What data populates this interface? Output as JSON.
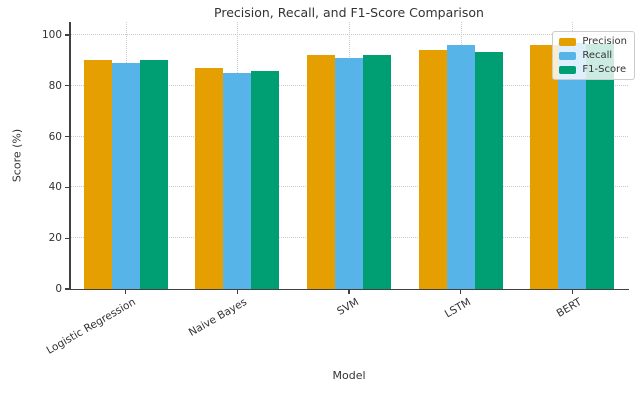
{
  "title": "Precision, Recall, and F1-Score Comparison",
  "chart_data": {
    "type": "bar",
    "title": "Precision, Recall, and F1-Score Comparison",
    "xlabel": "Model",
    "ylabel": "Score (%)",
    "ylim": [
      0,
      100
    ],
    "yticks": [
      0,
      20,
      40,
      60,
      80,
      100
    ],
    "grid": "both-dotted",
    "legend_position": "upper right",
    "categories": [
      "Logistic Regression",
      "Naive Bayes",
      "SVM",
      "LSTM",
      "BERT"
    ],
    "series": [
      {
        "name": "Precision",
        "color": "#E69F00",
        "values": [
          90,
          87,
          92,
          94,
          96
        ]
      },
      {
        "name": "Recall",
        "color": "#56B4E9",
        "values": [
          89,
          85,
          91,
          96,
          97
        ]
      },
      {
        "name": "F1-Score",
        "color": "#009E73",
        "values": [
          90,
          86,
          92,
          93.5,
          96.5
        ]
      }
    ]
  },
  "colors": {
    "precision": "#E69F00",
    "recall": "#56B4E9",
    "f1_score": "#009E73",
    "grid": "#cccccc",
    "axis": "#404040",
    "text": "#333333"
  }
}
